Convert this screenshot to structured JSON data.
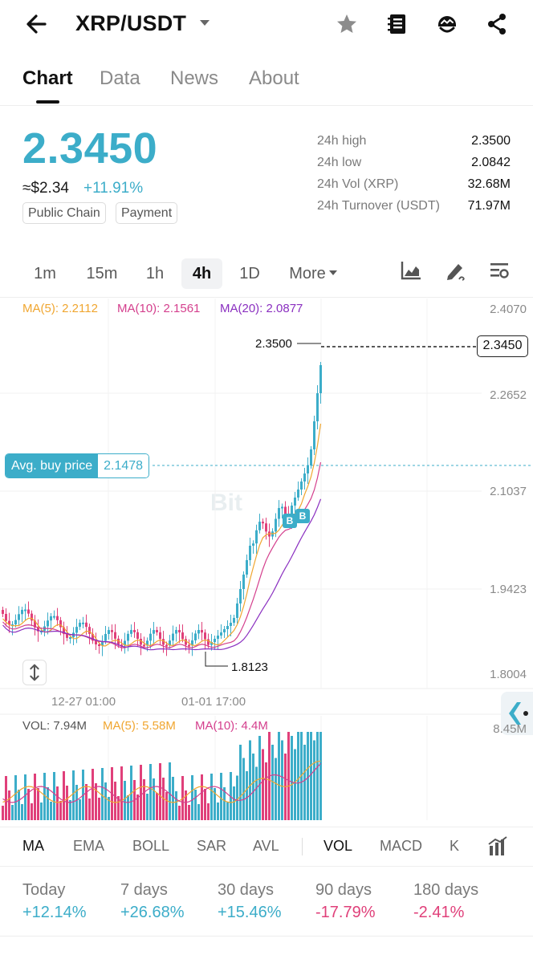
{
  "header": {
    "pair": "XRP/USDT",
    "icons": [
      "back-arrow-icon",
      "dropdown-caret-icon",
      "star-icon",
      "notebook-icon",
      "bot-icon",
      "share-icon"
    ]
  },
  "tabs": [
    "Chart",
    "Data",
    "News",
    "About"
  ],
  "price": {
    "last": "2.3450",
    "approx_usd": "≈$2.34",
    "change": "+11.91%",
    "tags": [
      "Public Chain",
      "Payment"
    ]
  },
  "stats": {
    "labels": [
      "24h high",
      "24h low",
      "24h Vol (XRP)",
      "24h Turnover (USDT)"
    ],
    "values": [
      "2.3500",
      "2.0842",
      "32.68M",
      "71.97M"
    ]
  },
  "timeframes": [
    "1m",
    "15m",
    "1h",
    "4h",
    "1D",
    "More"
  ],
  "chart": {
    "ma": [
      "MA(5): 2.2112",
      "MA(10): 2.1561",
      "MA(20): 2.0877"
    ],
    "price_axis": [
      "2.4070",
      "2.2652",
      "2.1037",
      "1.9423",
      "1.8004"
    ],
    "high_marker": "2.3500",
    "low_marker": "1.8123",
    "current_price": "2.3450",
    "avg_buy_label": "Avg. buy price",
    "avg_buy_value": "2.1478",
    "time_labels": [
      "12-27 01:00",
      "01-01 17:00"
    ],
    "buy_marker": "B",
    "watermark": "Bit",
    "colors": {
      "up": "#3cadc9",
      "down": "#e0407a",
      "ma5": "#f0a630",
      "ma10": "#d43f8d",
      "ma20": "#8a2fc0"
    }
  },
  "volume": {
    "legend": [
      "VOL: 7.94M",
      "MA(5): 5.58M",
      "MA(10): 4.4M"
    ],
    "axis_top": "8.45M"
  },
  "indicators": [
    "MA",
    "EMA",
    "BOLL",
    "SAR",
    "AVL",
    "VOL",
    "MACD",
    "K"
  ],
  "performance": {
    "labels": [
      "Today",
      "7 days",
      "30 days",
      "90 days",
      "180 days"
    ],
    "values": [
      "+12.14%",
      "+26.68%",
      "+15.46%",
      "-17.79%",
      "-2.41%"
    ]
  }
}
